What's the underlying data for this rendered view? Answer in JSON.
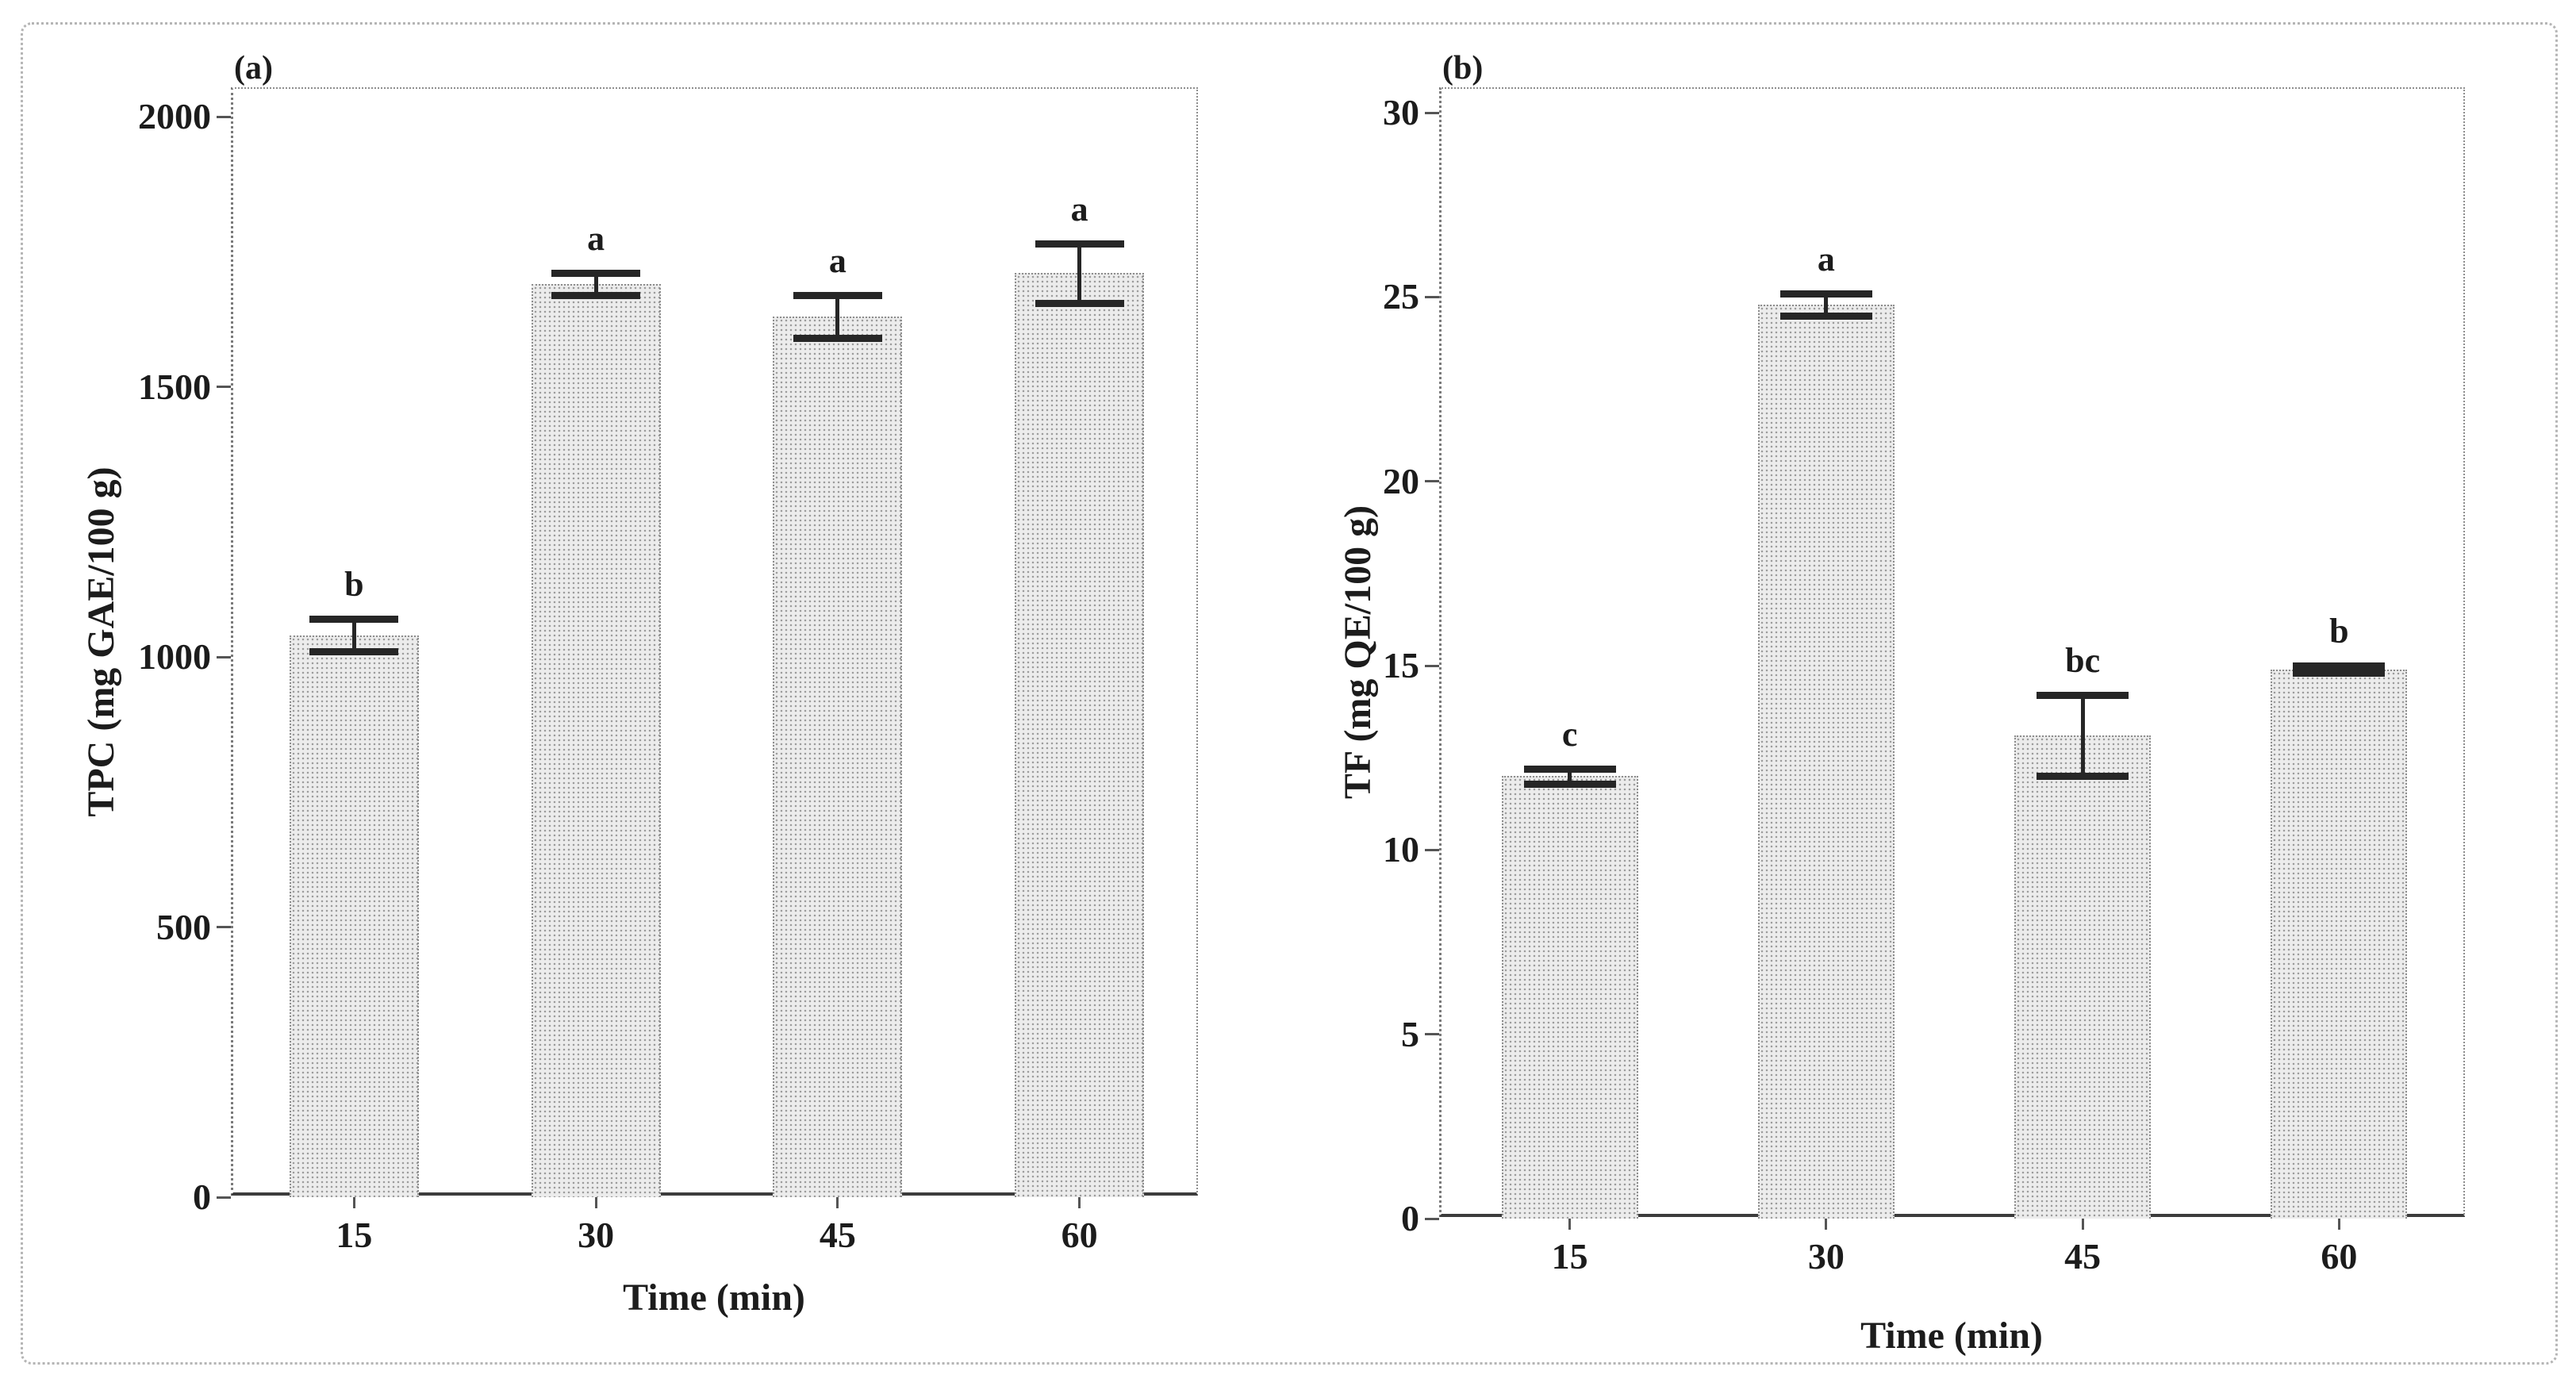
{
  "figure": {
    "background": "#ffffff",
    "border_color": "#b5b5b5",
    "text_color": "#1c1c1c"
  },
  "chart_data": [
    {
      "type": "bar",
      "panel_label": "(a)",
      "xlabel": "Time (min)",
      "ylabel": "TPC (mg GAE/100 g)",
      "categories": [
        "15",
        "30",
        "45",
        "60"
      ],
      "values": [
        1040,
        1690,
        1630,
        1710
      ],
      "errors": [
        30,
        20,
        40,
        55
      ],
      "sig_letters": [
        "b",
        "a",
        "a",
        "a"
      ],
      "ylim": [
        0,
        2000
      ],
      "yticks": [
        0,
        500,
        1000,
        1500,
        2000
      ],
      "grid": false,
      "legend_position": "none",
      "bar_fill": "#ececec",
      "bar_dot_color": "#9a9a9a",
      "bar_border_color": "#8d8d8d",
      "error_bar_color": "#262626"
    },
    {
      "type": "bar",
      "panel_label": "(b)",
      "xlabel": "Time (min)",
      "ylabel": "TF (mg QE/100 g)",
      "categories": [
        "15",
        "30",
        "45",
        "60"
      ],
      "values": [
        12.0,
        24.8,
        13.1,
        14.9
      ],
      "errors": [
        0.2,
        0.3,
        1.1,
        0.1
      ],
      "sig_letters": [
        "c",
        "a",
        "bc",
        "b"
      ],
      "ylim": [
        0,
        30
      ],
      "yticks": [
        0,
        5,
        10,
        15,
        20,
        25,
        30
      ],
      "grid": false,
      "legend_position": "none",
      "bar_fill": "#ececec",
      "bar_dot_color": "#9a9a9a",
      "bar_border_color": "#8d8d8d",
      "error_bar_color": "#262626"
    }
  ]
}
